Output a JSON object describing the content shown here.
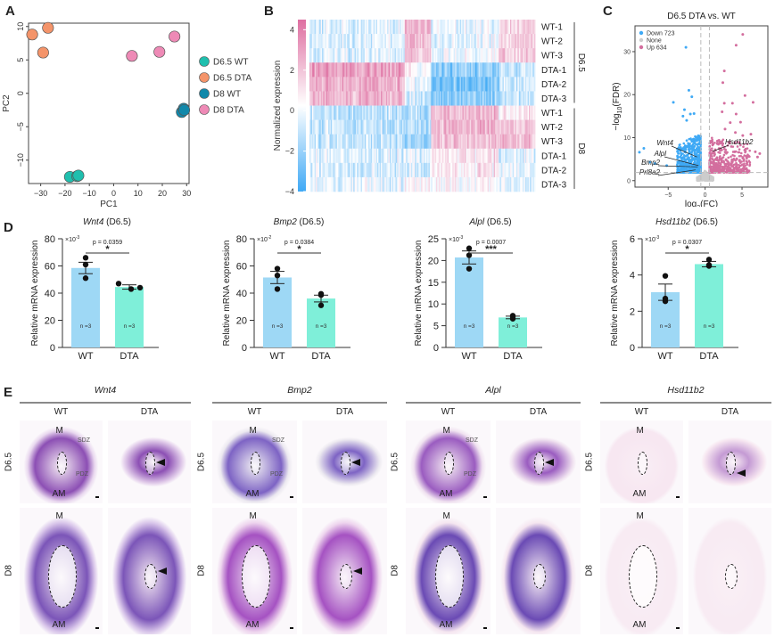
{
  "panels": {
    "A": "A",
    "B": "B",
    "C": "C",
    "D": "D",
    "E": "E"
  },
  "chart_data": [
    {
      "id": "A",
      "type": "scatter",
      "title": "",
      "xlabel": "PC1",
      "ylabel": "PC2",
      "xlim": [
        -35,
        31
      ],
      "ylim": [
        -13.5,
        10.5
      ],
      "xticks": [
        -30,
        -20,
        -10,
        0,
        10,
        20,
        30
      ],
      "yticks": [
        -10,
        -5,
        0,
        5,
        10
      ],
      "legend_position": "right",
      "series": [
        {
          "name": "D6.5 WT",
          "color": "#1fbfae",
          "points": [
            [
              -18,
              -12.5
            ],
            [
              -15,
              -12.4
            ],
            [
              -14.5,
              -12.3
            ]
          ]
        },
        {
          "name": "D6.5 DTA",
          "color": "#f4946a",
          "points": [
            [
              -33.5,
              8.8
            ],
            [
              -27,
              9.8
            ],
            [
              -29,
              6.1
            ]
          ]
        },
        {
          "name": "D8 WT",
          "color": "#1188aa",
          "points": [
            [
              28,
              -2.8
            ],
            [
              28.8,
              -2.3
            ],
            [
              29,
              -2.5
            ]
          ]
        },
        {
          "name": "D8 DTA",
          "color": "#ee8ab6",
          "points": [
            [
              7.5,
              5.6
            ],
            [
              18.8,
              6.2
            ],
            [
              25,
              8.5
            ]
          ]
        }
      ]
    },
    {
      "id": "B",
      "type": "heatmap",
      "colorbar_label": "Normalized expression",
      "colorbar_ticks": [
        4,
        2,
        0,
        -2,
        -4
      ],
      "colorbar_range": [
        -4,
        4.5
      ],
      "colors": {
        "low": "#3fa9f5",
        "mid": "#ffffff",
        "high": "#de6fa1"
      },
      "rows": [
        "WT-1",
        "WT-2",
        "WT-3",
        "DTA-1",
        "DTA-2",
        "DTA-3",
        "WT-1",
        "WT-2",
        "WT-3",
        "DTA-1",
        "DTA-2",
        "DTA-3"
      ],
      "groups": [
        {
          "name": "D6.5",
          "rows": [
            0,
            5
          ]
        },
        {
          "name": "D8",
          "rows": [
            6,
            11
          ]
        }
      ],
      "column_blocks": [
        {
          "fraction": 0.42,
          "pattern": [
            -0.6,
            -0.5,
            -0.5,
            2.2,
            1.8,
            1.6,
            -1.0,
            -0.9,
            -0.9,
            -0.5,
            -0.6,
            -0.3
          ]
        },
        {
          "fraction": 0.12,
          "pattern": [
            1.8,
            1.6,
            1.4,
            0.3,
            -0.2,
            -0.6,
            -1.0,
            -1.1,
            -1.6,
            -0.3,
            -0.6,
            0.4
          ]
        },
        {
          "fraction": 0.3,
          "pattern": [
            -0.4,
            -0.4,
            -0.2,
            -1.8,
            -2.2,
            -1.8,
            1.6,
            1.6,
            1.3,
            0.6,
            0.5,
            0.2
          ]
        },
        {
          "fraction": 0.16,
          "pattern": [
            1.0,
            1.0,
            1.2,
            -0.9,
            -0.8,
            -0.8,
            0.6,
            1.2,
            1.4,
            -0.5,
            -0.3,
            -0.5
          ]
        }
      ]
    },
    {
      "id": "C",
      "type": "scatter",
      "subtype": "volcano",
      "title": "D6.5 DTA vs. WT",
      "xlabel": "log2(FC)",
      "ylabel": "-log10(FDR)",
      "xlim": [
        -9.5,
        8.5
      ],
      "ylim": [
        -1.5,
        36
      ],
      "xticks": [
        -5,
        0,
        5
      ],
      "yticks": [
        0,
        10,
        20,
        30
      ],
      "thresholds": {
        "fc": [
          -0.58,
          0.58
        ],
        "fdr": 1.9
      },
      "legend_position": "top-left",
      "legend": [
        {
          "name": "Down 723",
          "color": "#3fa9f5"
        },
        {
          "name": "None",
          "color": "#cccccc"
        },
        {
          "name": "Up 634",
          "color": "#d36e9e"
        }
      ],
      "highlight_points": {
        "down": [
          [
            -2.6,
            31
          ],
          [
            -2.2,
            21
          ],
          [
            -1.8,
            19.5
          ],
          [
            -4.3,
            18.2
          ],
          [
            -2.8,
            16.5
          ],
          [
            -2.0,
            15.5
          ],
          [
            -3.0,
            15
          ],
          [
            -1.5,
            15.6
          ],
          [
            -2.5,
            14
          ],
          [
            -8.9,
            6.6
          ],
          [
            -8.3,
            7.5
          ],
          [
            -7.5,
            4.3
          ],
          [
            -6.8,
            4
          ],
          [
            -5.2,
            3.5
          ]
        ],
        "up": [
          [
            5.1,
            34
          ],
          [
            4.2,
            31.5
          ],
          [
            2.6,
            25.5
          ],
          [
            2.4,
            22.8
          ],
          [
            5.4,
            19.8
          ],
          [
            6.5,
            18.2
          ],
          [
            3.7,
            18
          ],
          [
            2.6,
            18
          ],
          [
            4.2,
            15.5
          ],
          [
            2.3,
            16
          ],
          [
            3.4,
            13.5
          ],
          [
            4.8,
            13.6
          ],
          [
            5.1,
            10.5
          ],
          [
            6.2,
            10.8
          ],
          [
            7.4,
            6.3
          ],
          [
            6.8,
            6.7
          ],
          [
            7.1,
            5.5
          ],
          [
            2.7,
            12
          ],
          [
            4.1,
            11.2
          ]
        ]
      },
      "labels": [
        {
          "text": "Wnt4",
          "point": [
            -1.1,
            5.5
          ]
        },
        {
          "text": "Alpl",
          "point": [
            -0.9,
            3.5
          ]
        },
        {
          "text": "Bmp2",
          "point": [
            -1.0,
            3.2
          ]
        },
        {
          "text": "Prl8a2",
          "point": [
            -1.3,
            2.5
          ]
        },
        {
          "text": "Hsd11b2",
          "point": [
            1.0,
            6.8
          ]
        }
      ]
    },
    {
      "id": "D1",
      "type": "bar",
      "title_gene": "Wnt4",
      "title_suffix": " (D6.5)",
      "ylabel": "Relative mRNA expression",
      "scale_label": "×10",
      "scale_exp": "-3",
      "categories": [
        "WT",
        "DTA"
      ],
      "values": [
        58.5,
        44.5
      ],
      "errors": [
        4.2,
        1.6
      ],
      "points": [
        [
          66,
          61,
          51
        ],
        [
          47,
          43,
          44
        ]
      ],
      "ylim": [
        0,
        80
      ],
      "yticks": [
        0,
        20,
        40,
        60,
        80
      ],
      "pvalue": "p = 0.0359",
      "significance": "*",
      "n_labels": [
        "n =3",
        "n =3"
      ],
      "colors": [
        "#9ed8f5",
        "#7fefd9"
      ]
    },
    {
      "id": "D2",
      "type": "bar",
      "title_gene": "Bmp2",
      "title_suffix": " (D6.5)",
      "ylabel": "Relative mRNA expression",
      "scale_label": "×10",
      "scale_exp": "-2",
      "categories": [
        "WT",
        "DTA"
      ],
      "values": [
        51.5,
        36
      ],
      "errors": [
        4.5,
        2.5
      ],
      "points": [
        [
          58,
          53,
          43
        ],
        [
          39.5,
          38.5,
          31
        ]
      ],
      "ylim": [
        0,
        80
      ],
      "yticks": [
        0,
        20,
        40,
        60,
        80
      ],
      "pvalue": "p = 0.0384",
      "significance": "*",
      "n_labels": [
        "n =3",
        "n =3"
      ],
      "colors": [
        "#9ed8f5",
        "#7fefd9"
      ]
    },
    {
      "id": "D3",
      "type": "bar",
      "title_gene": "Alpl",
      "title_suffix": " (D6.5)",
      "ylabel": "Relative mRNA expression",
      "scale_label": "×10",
      "scale_exp": "-3",
      "categories": [
        "WT",
        "DTA"
      ],
      "values": [
        20.7,
        6.9
      ],
      "errors": [
        1.5,
        0.3
      ],
      "points": [
        [
          22.8,
          21.2,
          18.1
        ],
        [
          6.6,
          7.3,
          7.1
        ]
      ],
      "ylim": [
        0,
        25
      ],
      "yticks": [
        0,
        5,
        10,
        15,
        20,
        25
      ],
      "pvalue": "p = 0.0007",
      "significance": "***",
      "n_labels": [
        "n =3",
        "n =3"
      ],
      "colors": [
        "#9ed8f5",
        "#7fefd9"
      ]
    },
    {
      "id": "D4",
      "type": "bar",
      "title_gene": "Hsd11b2",
      "title_suffix": " (D6.5)",
      "ylabel": "Relative mRNA expression",
      "scale_label": "×10",
      "scale_exp": "-3",
      "categories": [
        "WT",
        "DTA"
      ],
      "values": [
        3.05,
        4.6
      ],
      "errors": [
        0.45,
        0.15
      ],
      "points": [
        [
          3.95,
          2.55,
          2.7
        ],
        [
          4.5,
          4.85,
          4.55
        ]
      ],
      "ylim": [
        0,
        6
      ],
      "yticks": [
        0,
        2,
        4,
        6
      ],
      "pvalue": "p = 0.0307",
      "significance": "*",
      "n_labels": [
        "n =3",
        "n =3"
      ],
      "colors": [
        "#9ed8f5",
        "#7fefd9"
      ]
    }
  ],
  "panelE": {
    "genes": [
      {
        "name": "Wnt4",
        "tint": "strong"
      },
      {
        "name": "Bmp2",
        "tint": "grainy"
      },
      {
        "name": "Alpl",
        "tint": "lowerband"
      },
      {
        "name": "Hsd11b2",
        "tint": "faint"
      }
    ],
    "columns": [
      "WT",
      "DTA"
    ],
    "rows": [
      "D6.5",
      "D8"
    ],
    "labels": {
      "M": "M",
      "AM": "AM",
      "SDZ": "SDZ",
      "PDZ": "PDZ"
    }
  }
}
